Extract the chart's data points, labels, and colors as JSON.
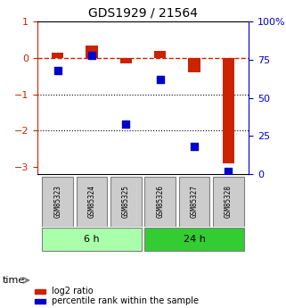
{
  "title": "GDS1929 / 21564",
  "samples": [
    "GSM85323",
    "GSM85324",
    "GSM85325",
    "GSM85326",
    "GSM85327",
    "GSM85328"
  ],
  "log2_ratio": [
    0.15,
    0.35,
    -0.15,
    0.2,
    -0.4,
    -2.9
  ],
  "percentile_rank": [
    68,
    78,
    33,
    62,
    18,
    2
  ],
  "groups": [
    {
      "label": "6 h",
      "indices": [
        0,
        1,
        2
      ],
      "color": "#aaffaa"
    },
    {
      "label": "24 h",
      "indices": [
        3,
        4,
        5
      ],
      "color": "#33cc33"
    }
  ],
  "ylim_left": [
    -3.2,
    1.0
  ],
  "ylim_right": [
    0,
    100
  ],
  "yticks_left": [
    1,
    0,
    -1,
    -2,
    -3
  ],
  "yticks_right": [
    0,
    25,
    50,
    75,
    100
  ],
  "bar_color": "#cc2200",
  "dot_color": "#0000cc",
  "dashed_line_color": "#cc2200",
  "legend_bar_label": "log2 ratio",
  "legend_dot_label": "percentile rank within the sample",
  "time_label": "time",
  "bar_width": 0.35
}
